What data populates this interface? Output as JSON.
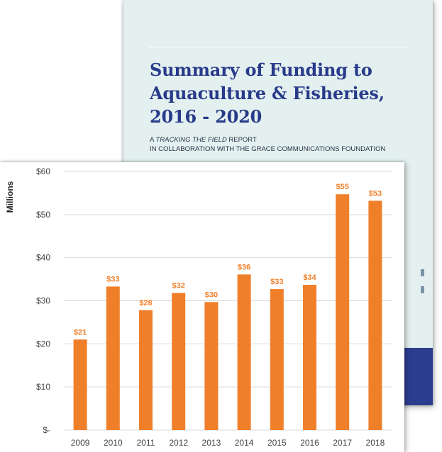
{
  "cover": {
    "title_lines": [
      "Summary of Funding to",
      "Aquaculture & Fisheries,",
      "2016 - 2020"
    ],
    "subtitle_prefix": "A ",
    "subtitle_italic": "TRACKING THE FIELD",
    "subtitle_suffix": " REPORT",
    "subtitle_line2": "IN COLLABORATION WITH THE GRACE COMMUNICATIONS FOUNDATION",
    "band_color": "#2b3d8f",
    "title_color": "#283a8a",
    "background_color": "#e3f0ef"
  },
  "chart_data": {
    "type": "bar",
    "categories": [
      "2009",
      "2010",
      "2011",
      "2012",
      "2013",
      "2014",
      "2015",
      "2016",
      "2017",
      "2018"
    ],
    "values": [
      21,
      33,
      28,
      32,
      30,
      36,
      33,
      34,
      55,
      53
    ],
    "actual_heights": [
      21,
      33.3,
      27.8,
      31.8,
      29.7,
      36.1,
      32.7,
      33.7,
      54.7,
      53.2
    ],
    "data_labels": [
      "$21",
      "$33",
      "$28",
      "$32",
      "$30",
      "$36",
      "$33",
      "$34",
      "$55",
      "$53"
    ],
    "y_ticks": [
      0,
      10,
      20,
      30,
      40,
      50,
      60
    ],
    "y_tick_labels": [
      "$-",
      "$10",
      "$20",
      "$30",
      "$40",
      "$50",
      "$60"
    ],
    "ylim": [
      0,
      60
    ],
    "ylabel": "Millions",
    "xlabel": "",
    "title": "",
    "grid": true,
    "bar_color": "#f07f2a",
    "label_color": "#f07f2a"
  }
}
